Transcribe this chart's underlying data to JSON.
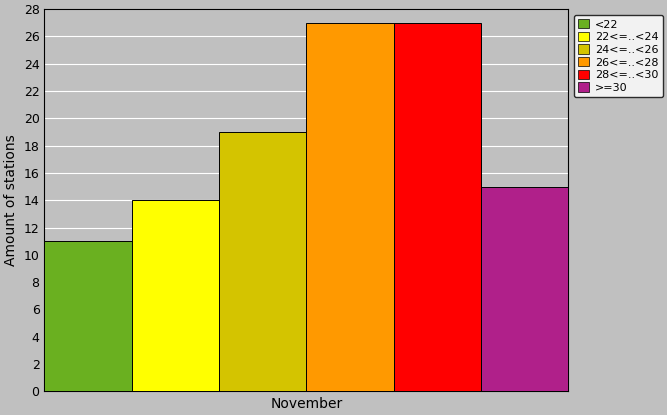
{
  "categories": [
    "<22",
    "22<=..<24",
    "24<=..<26",
    "26<=..<28",
    "28<=..<30",
    ">=30"
  ],
  "values": [
    11,
    14,
    19,
    27,
    27,
    15
  ],
  "bar_colors": [
    "#6ab020",
    "#ffff00",
    "#d4c400",
    "#ff9900",
    "#ff0000",
    "#b0208a"
  ],
  "xlabel": "November",
  "ylabel": "Amount of stations",
  "ylim": [
    0,
    28
  ],
  "yticks": [
    0,
    2,
    4,
    6,
    8,
    10,
    12,
    14,
    16,
    18,
    20,
    22,
    24,
    26,
    28
  ],
  "background_color": "#c0c0c0",
  "plot_bg_color": "#c0c0c0",
  "legend_labels": [
    "<22",
    "22<=..<24",
    "24<=..<26",
    "26<=..<28",
    "28<=..<30",
    ">=30"
  ],
  "legend_colors": [
    "#6ab020",
    "#ffff00",
    "#d4c400",
    "#ff9900",
    "#ff0000",
    "#b0208a"
  ],
  "grid_color": "#ffffff"
}
